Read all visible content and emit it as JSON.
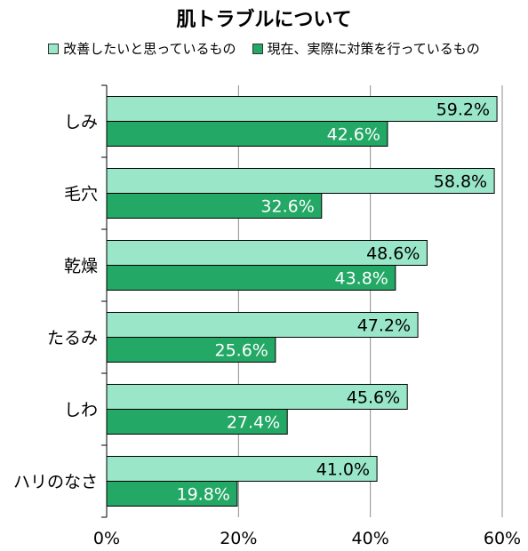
{
  "chart_data": {
    "type": "bar",
    "orientation": "horizontal",
    "title": "肌トラブルについて",
    "categories": [
      "しみ",
      "毛穴",
      "乾燥",
      "たるみ",
      "しわ",
      "ハリのなさ"
    ],
    "series": [
      {
        "name": "改善したいと思っているもの",
        "color": "#99e6c8",
        "values": [
          59.2,
          58.8,
          48.6,
          47.2,
          45.6,
          41.0
        ],
        "labels": [
          "59.2%",
          "58.8%",
          "48.6%",
          "47.2%",
          "45.6%",
          "41.0%"
        ]
      },
      {
        "name": "現在、実際に対策を行っているもの",
        "color": "#24a866",
        "values": [
          42.6,
          32.6,
          43.8,
          25.6,
          27.4,
          19.8
        ],
        "labels": [
          "42.6%",
          "32.6%",
          "43.8%",
          "25.6%",
          "27.4%",
          "19.8%"
        ]
      }
    ],
    "xlim": [
      0,
      60
    ],
    "xticks": [
      0,
      20,
      40,
      60
    ],
    "xtick_labels": [
      "0%",
      "20%",
      "40%",
      "60%"
    ],
    "grid": true,
    "legend_position": "top"
  }
}
